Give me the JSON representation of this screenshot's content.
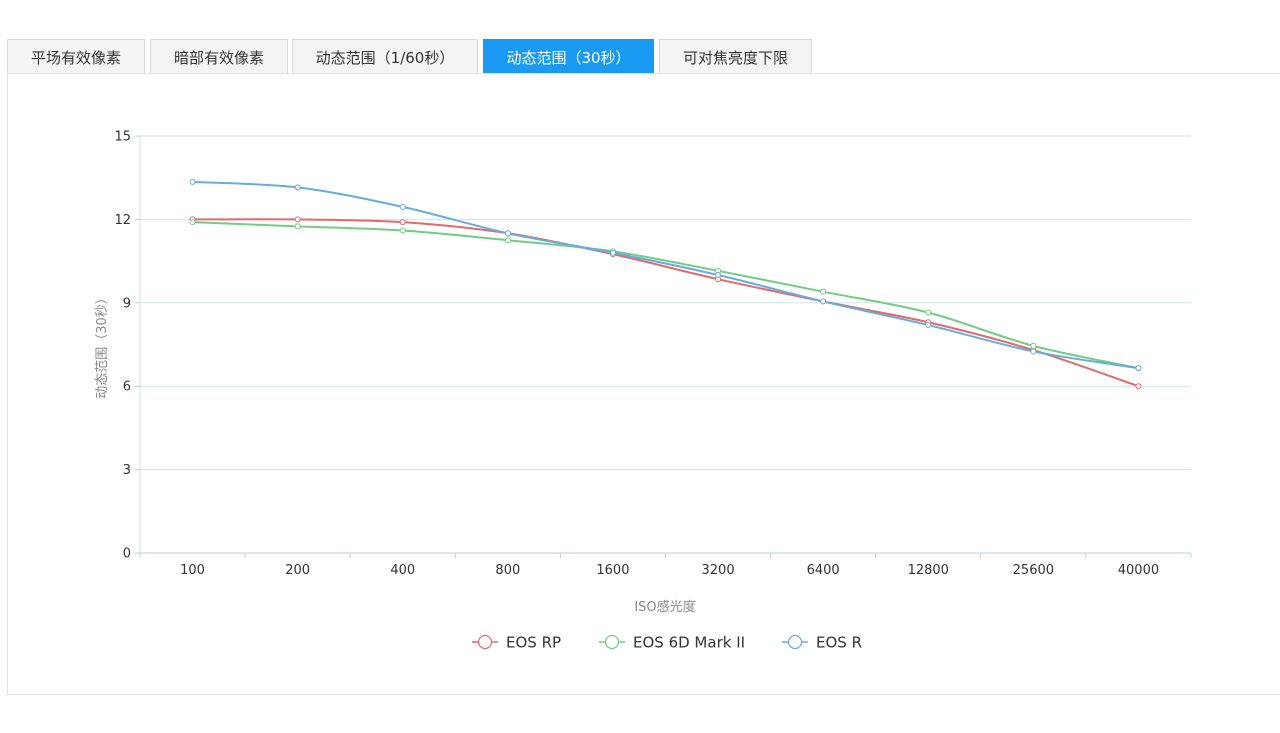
{
  "tabs": [
    {
      "label": "平场有效像素",
      "active": false
    },
    {
      "label": "暗部有效像素",
      "active": false
    },
    {
      "label": "动态范围（1/60秒）",
      "active": false
    },
    {
      "label": "动态范围（30秒）",
      "active": true
    },
    {
      "label": "可对焦亮度下限",
      "active": false
    }
  ],
  "colors": {
    "accent": "#1a9af2",
    "grid": "#cfe3ea"
  },
  "chart_data": {
    "type": "line",
    "categories": [
      "100",
      "200",
      "400",
      "800",
      "1600",
      "3200",
      "6400",
      "12800",
      "25600",
      "40000"
    ],
    "xlabel": "ISO感光度",
    "ylabel": "动态范围（30秒）",
    "ylim": [
      0,
      15
    ],
    "yticks": [
      0,
      3,
      6,
      9,
      12,
      15
    ],
    "grid": true,
    "legend_position": "bottom",
    "series": [
      {
        "name": "EOS RP",
        "color": "#e06b6b",
        "values": [
          12.0,
          12.0,
          11.9,
          11.5,
          10.75,
          9.85,
          9.05,
          8.3,
          7.3,
          6.0
        ]
      },
      {
        "name": "EOS 6D Mark II",
        "color": "#72cc84",
        "values": [
          11.9,
          11.75,
          11.6,
          11.25,
          10.85,
          10.15,
          9.4,
          8.65,
          7.45,
          6.65
        ]
      },
      {
        "name": "EOS R",
        "color": "#68acdd",
        "values": [
          13.35,
          13.15,
          12.45,
          11.5,
          10.8,
          10.0,
          9.05,
          8.2,
          7.25,
          6.65
        ]
      }
    ]
  }
}
